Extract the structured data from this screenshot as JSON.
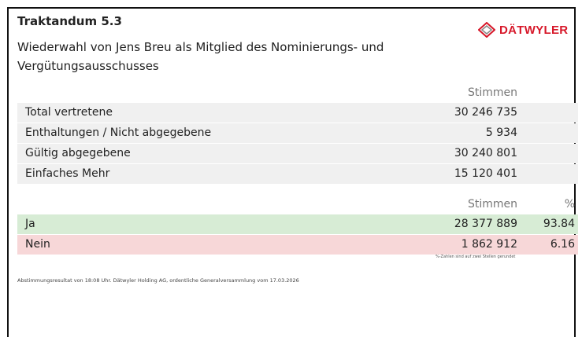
{
  "header": {
    "title": "Traktandum 5.3",
    "subtitle": [
      "Wiederwahl von Jens Breu als Mitglied des Nominierungs- und",
      "Vergütungsausschusses"
    ],
    "logo": "DÄTWYLER"
  },
  "summary": {
    "column": "Stimmen",
    "rows": [
      [
        "Total vertretene",
        "30 246 735"
      ],
      [
        "Enthaltungen / Nicht abgegebene",
        "5 934"
      ],
      [
        "Gültig abgegebene",
        "30 240 801"
      ],
      [
        "Einfaches Mehr",
        "15 120 401"
      ]
    ]
  },
  "result": {
    "columns": [
      "Stimmen",
      "%"
    ],
    "rows": [
      [
        "Ja",
        "28 377 889",
        93.84
      ],
      [
        "Nein",
        "1 862 912",
        6.16
      ]
    ],
    "note": "%-Zahlen sind auf zwei Stellen gerundet"
  },
  "footer": "Abstimmungsresultat von 18:08 Uhr. Dätwyler Holding AG, ordentliche Generalversammlung vom 17.03.2026"
}
